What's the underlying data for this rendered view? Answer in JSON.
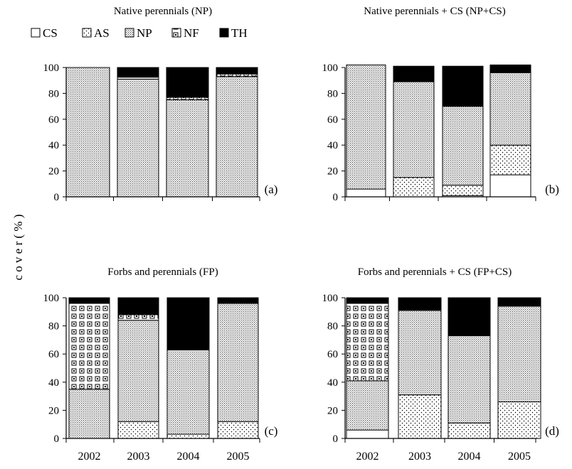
{
  "figure": {
    "ylabel": "c o v e r   ( % )",
    "legend": [
      {
        "key": "CS",
        "label": "CS"
      },
      {
        "key": "AS",
        "label": "AS"
      },
      {
        "key": "NP",
        "label": "NP"
      },
      {
        "key": "NF",
        "label": "NF"
      },
      {
        "key": "TH",
        "label": "TH"
      }
    ]
  },
  "chart_data": [
    {
      "type": "bar",
      "stacked": true,
      "title": "Native perennials (NP)",
      "panel_label": "(a)",
      "categories": [
        "2002",
        "2003",
        "2004",
        "2005"
      ],
      "ylim": [
        0,
        100
      ],
      "yticks": [
        0,
        20,
        40,
        60,
        80,
        100
      ],
      "series": [
        {
          "name": "CS",
          "values": [
            0,
            0,
            0,
            0
          ]
        },
        {
          "name": "AS",
          "values": [
            0,
            0,
            0,
            0
          ]
        },
        {
          "name": "NP",
          "values": [
            100,
            91,
            75,
            93
          ]
        },
        {
          "name": "NF",
          "values": [
            0,
            1.5,
            2,
            2
          ]
        },
        {
          "name": "TH",
          "values": [
            0,
            7.5,
            23,
            5
          ]
        }
      ]
    },
    {
      "type": "bar",
      "stacked": true,
      "title": "Native perennials + CS (NP+CS)",
      "panel_label": "(b)",
      "categories": [
        "2002",
        "2003",
        "2004",
        "2005"
      ],
      "ylim": [
        0,
        100
      ],
      "yticks": [
        0,
        20,
        40,
        60,
        80,
        100
      ],
      "series": [
        {
          "name": "CS",
          "values": [
            6,
            0,
            1,
            17
          ]
        },
        {
          "name": "AS",
          "values": [
            0,
            15,
            8,
            23
          ]
        },
        {
          "name": "NP",
          "values": [
            96,
            74,
            61,
            56
          ]
        },
        {
          "name": "NF",
          "values": [
            0,
            0,
            0,
            0
          ]
        },
        {
          "name": "TH",
          "values": [
            0,
            12,
            31,
            6
          ]
        }
      ]
    },
    {
      "type": "bar",
      "stacked": true,
      "title": "Forbs and perennials (FP)",
      "panel_label": "(c)",
      "categories": [
        "2002",
        "2003",
        "2004",
        "2005"
      ],
      "ylim": [
        0,
        100
      ],
      "yticks": [
        0,
        20,
        40,
        60,
        80,
        100
      ],
      "series": [
        {
          "name": "CS",
          "values": [
            0,
            0,
            0,
            0
          ]
        },
        {
          "name": "AS",
          "values": [
            0,
            12,
            3,
            12
          ]
        },
        {
          "name": "NP",
          "values": [
            35,
            72,
            60,
            84
          ]
        },
        {
          "name": "NF",
          "values": [
            61,
            4,
            0,
            0
          ]
        },
        {
          "name": "TH",
          "values": [
            4,
            12,
            37,
            4
          ]
        }
      ]
    },
    {
      "type": "bar",
      "stacked": true,
      "title": "Forbs and perennials + CS (FP+CS)",
      "panel_label": "(d)",
      "categories": [
        "2002",
        "2003",
        "2004",
        "2005"
      ],
      "ylim": [
        0,
        100
      ],
      "yticks": [
        0,
        20,
        40,
        60,
        80,
        100
      ],
      "series": [
        {
          "name": "CS",
          "values": [
            6,
            0,
            0,
            0
          ]
        },
        {
          "name": "AS",
          "values": [
            0,
            31,
            11,
            26
          ]
        },
        {
          "name": "NP",
          "values": [
            35,
            60,
            62,
            68
          ]
        },
        {
          "name": "NF",
          "values": [
            55,
            0,
            0,
            0
          ]
        },
        {
          "name": "TH",
          "values": [
            4,
            9,
            27,
            6
          ]
        }
      ]
    }
  ]
}
